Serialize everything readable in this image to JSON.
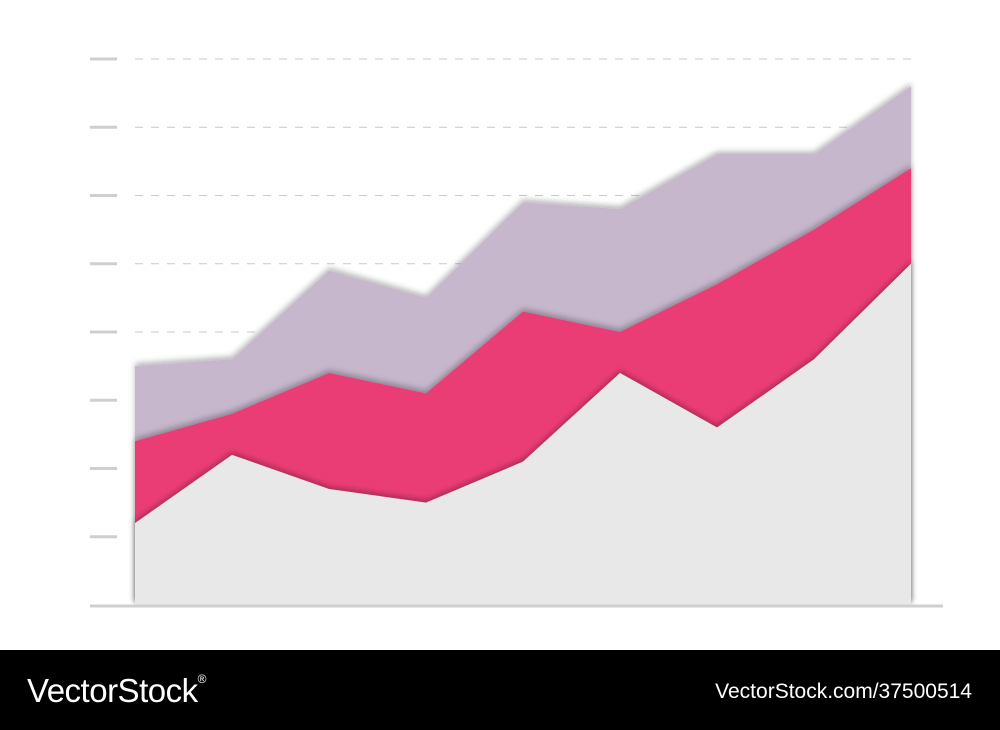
{
  "chart_data": {
    "type": "area",
    "stacked": true,
    "x": [
      1,
      2,
      3,
      4,
      5,
      6,
      7,
      8,
      9
    ],
    "series": [
      {
        "color": "#e8e8e8",
        "values": [
          1.2,
          2.2,
          1.7,
          1.5,
          2.1,
          3.4,
          2.6,
          3.6,
          5.0
        ]
      },
      {
        "color": "#eb3e75",
        "values": [
          1.2,
          0.6,
          1.7,
          1.6,
          2.2,
          0.6,
          2.1,
          1.9,
          1.4
        ]
      },
      {
        "color": "#c6b7cc",
        "values": [
          1.1,
          0.8,
          1.5,
          1.4,
          1.6,
          1.8,
          1.9,
          1.1,
          1.2
        ]
      }
    ],
    "ylim": [
      0,
      8
    ],
    "grid": true,
    "title": "",
    "xlabel": "",
    "ylabel": ""
  },
  "footer": {
    "brand": "VectorStock",
    "brand_mark": "®",
    "image_id": "VectorStock.com/37500514"
  }
}
